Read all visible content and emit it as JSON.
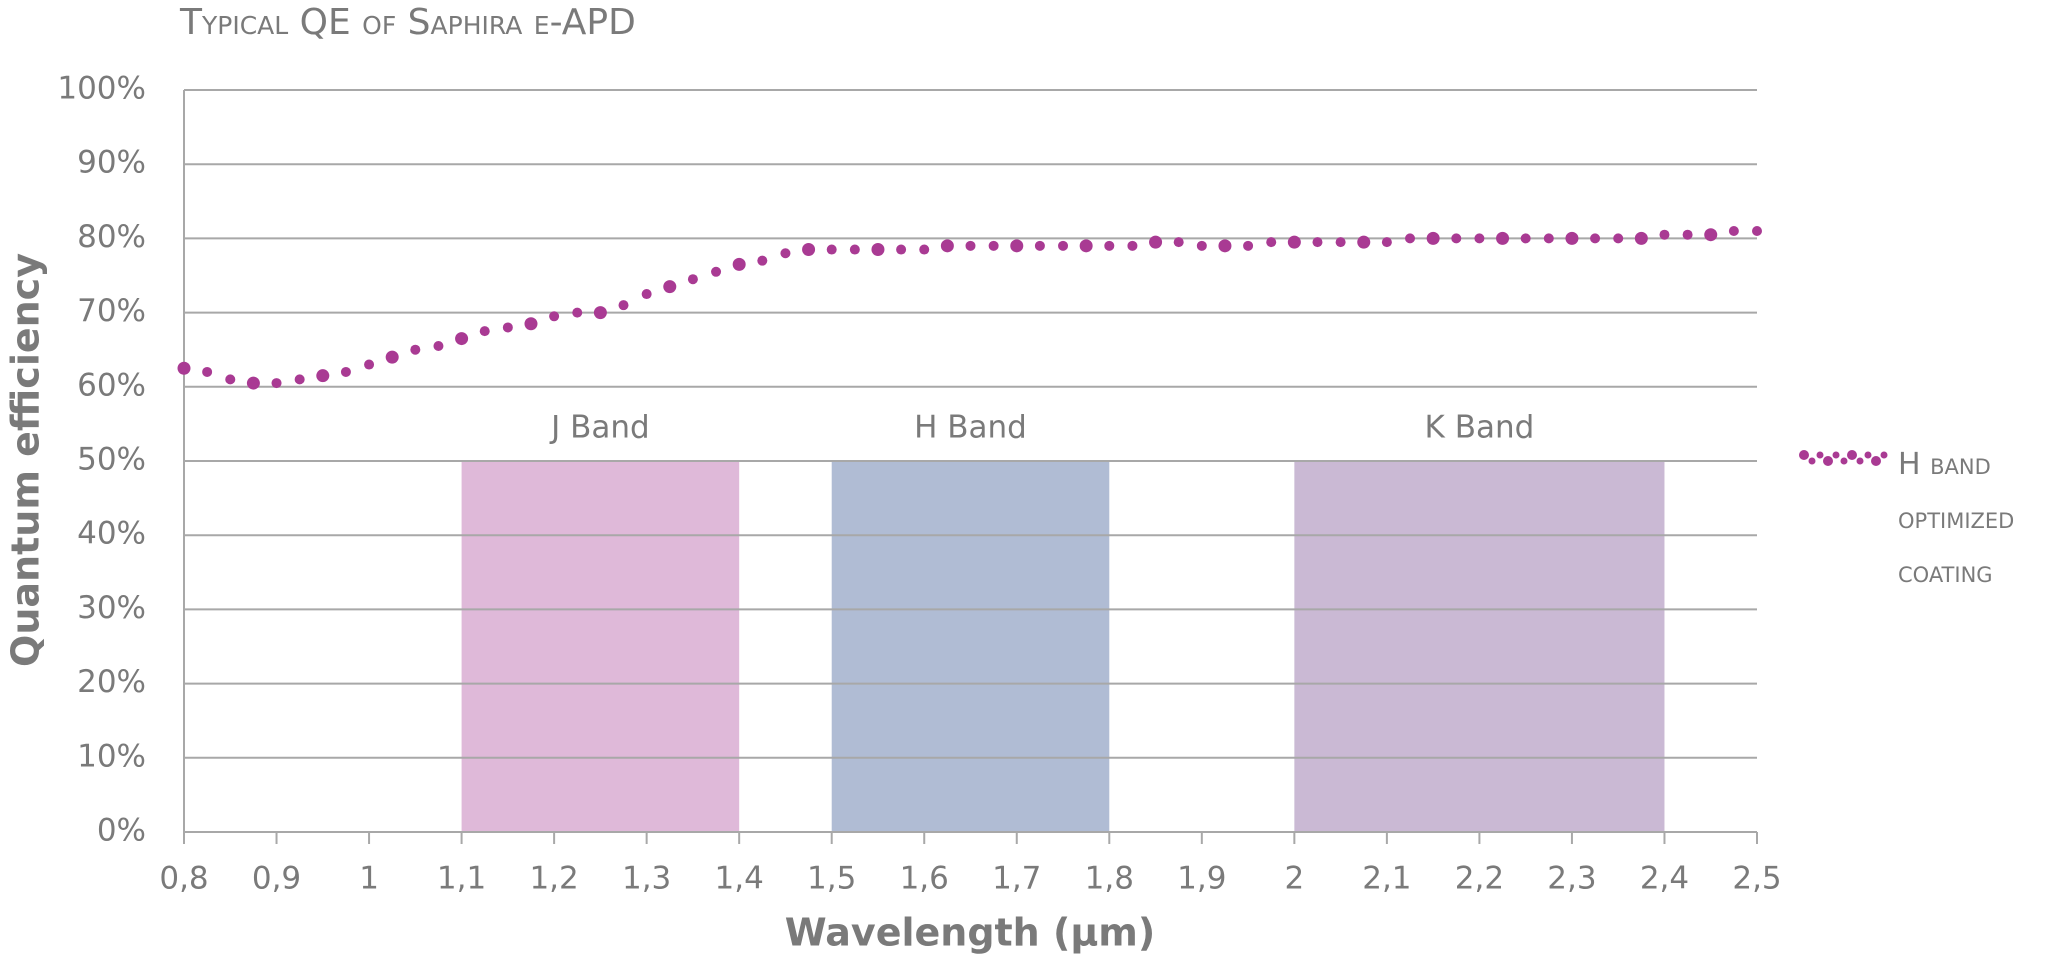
{
  "chart_data": {
    "type": "scatter",
    "title": "Typical QE of Saphira e-APD",
    "x_label": "Wavelength (µm)",
    "y_label": "Quantum efficiency",
    "xlim": [
      0.8,
      2.5
    ],
    "ylim": [
      0,
      100
    ],
    "xticks": [
      {
        "value": 0.8,
        "label": "0,8"
      },
      {
        "value": 0.9,
        "label": "0,9"
      },
      1,
      {
        "value": 1.1,
        "label": "1,1"
      },
      {
        "value": 1.2,
        "label": "1,2"
      },
      {
        "value": 1.3,
        "label": "1,3"
      },
      {
        "value": 1.4,
        "label": "1,4"
      },
      {
        "value": 1.5,
        "label": "1,5"
      },
      {
        "value": 1.6,
        "label": "1,6"
      },
      {
        "value": 1.7,
        "label": "1,7"
      },
      {
        "value": 1.8,
        "label": "1,8"
      },
      {
        "value": 1.9,
        "label": "1,9"
      },
      2,
      {
        "value": 2.1,
        "label": "2,1"
      },
      {
        "value": 2.2,
        "label": "2,2"
      },
      {
        "value": 2.3,
        "label": "2,3"
      },
      {
        "value": 2.4,
        "label": "2,4"
      },
      {
        "value": 2.5,
        "label": "2,5"
      }
    ],
    "yticks": [
      {
        "value": 0,
        "label": "0%"
      },
      {
        "value": 10,
        "label": "10%"
      },
      {
        "value": 20,
        "label": "20%"
      },
      {
        "value": 30,
        "label": "30%"
      },
      {
        "value": 40,
        "label": "40%"
      },
      {
        "value": 50,
        "label": "50%"
      },
      {
        "value": 60,
        "label": "60%"
      },
      {
        "value": 70,
        "label": "70%"
      },
      {
        "value": 80,
        "label": "80%"
      },
      {
        "value": 90,
        "label": "90%"
      },
      {
        "value": 100,
        "label": "100%"
      }
    ],
    "grid": true,
    "legend": "right",
    "bands": [
      {
        "label": "J Band",
        "from": 1.1,
        "to": 1.4,
        "value": 50,
        "color": "#dfb9d9"
      },
      {
        "label": "H Band",
        "from": 1.5,
        "to": 1.8,
        "value": 50,
        "color": "#b0bcd4"
      },
      {
        "label": "K Band",
        "from": 2.0,
        "to": 2.4,
        "value": 50,
        "color": "#cab9d4"
      }
    ],
    "series": [
      {
        "name": "H band optimized coating",
        "color": "#a93a93",
        "x": [
          0.8,
          0.825,
          0.85,
          0.875,
          0.9,
          0.925,
          0.95,
          0.975,
          1.0,
          1.025,
          1.05,
          1.075,
          1.1,
          1.125,
          1.15,
          1.175,
          1.2,
          1.225,
          1.25,
          1.275,
          1.3,
          1.325,
          1.35,
          1.375,
          1.4,
          1.425,
          1.45,
          1.475,
          1.5,
          1.525,
          1.55,
          1.575,
          1.6,
          1.625,
          1.65,
          1.675,
          1.7,
          1.725,
          1.75,
          1.775,
          1.8,
          1.825,
          1.85,
          1.875,
          1.9,
          1.925,
          1.95,
          1.975,
          2.0,
          2.025,
          2.05,
          2.075,
          2.1,
          2.125,
          2.15,
          2.175,
          2.2,
          2.225,
          2.25,
          2.275,
          2.3,
          2.325,
          2.35,
          2.375,
          2.4,
          2.425,
          2.45,
          2.475,
          2.5
        ],
        "values": [
          62.5,
          62,
          61,
          60.5,
          60.5,
          61,
          61.5,
          62,
          63,
          64,
          65,
          65.5,
          66.5,
          67.5,
          68,
          68.5,
          69.5,
          70,
          70,
          71,
          72.5,
          73.5,
          74.5,
          75.5,
          76.5,
          77,
          78,
          78.5,
          78.5,
          78.5,
          78.5,
          78.5,
          78.5,
          79,
          79,
          79,
          79,
          79,
          79,
          79,
          79,
          79,
          79.5,
          79.5,
          79,
          79,
          79,
          79.5,
          79.5,
          79.5,
          79.5,
          79.5,
          79.5,
          80,
          80,
          80,
          80,
          80,
          80,
          80,
          80,
          80,
          80,
          80,
          80.5,
          80.5,
          80.5,
          81,
          81
        ]
      }
    ]
  }
}
